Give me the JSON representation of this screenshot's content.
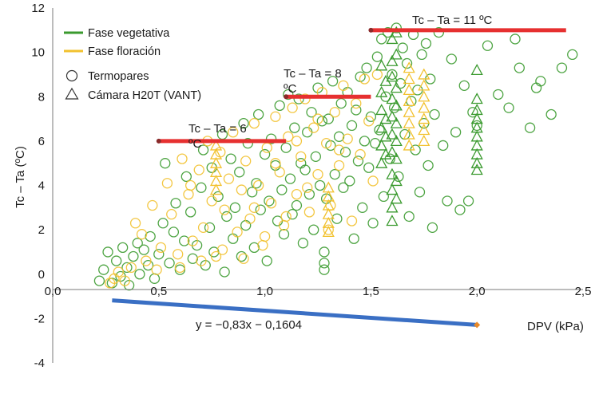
{
  "chart_data": {
    "type": "scatter",
    "xlabel": "DPV (kPa)",
    "ylabel": "Tc – Ta (ºC)",
    "xlim": [
      0,
      2.5
    ],
    "ylim": [
      -4,
      12
    ],
    "x_ticks": [
      "0,0",
      "0,5",
      "1,0",
      "1,5",
      "2,0",
      "2,5"
    ],
    "y_ticks": [
      "-4",
      "-2",
      "0",
      "2",
      "4",
      "6",
      "8",
      "10",
      "12"
    ],
    "legend": {
      "vegetative": "Fase vegetativa",
      "flowering": "Fase floración",
      "thermocouples": "Termopares",
      "camera": "Cámara H20T (VANT)"
    },
    "colors": {
      "vegetative": "#3a9a2e",
      "flowering": "#f2c12e",
      "threshold": "#e63030",
      "regression": "#3a6fc4"
    },
    "thresholds": [
      {
        "label": "Tc – Ta = 6 ºC",
        "line1": "Tc – Ta = 6",
        "line2": "ºC",
        "y": 6,
        "x_start": 0.5,
        "x_end": 1.1
      },
      {
        "label": "Tc – Ta = 8 ºC",
        "line1": "Tc – Ta = 8",
        "line2": "ºC",
        "y": 8,
        "x_start": 1.1,
        "x_end": 1.5
      },
      {
        "label": "Tc – Ta = 11 ºC",
        "line1": "Tc – Ta = 11 ºC",
        "y": 11,
        "x_start": 1.5,
        "x_end": 2.42
      }
    ],
    "regression": {
      "equation": "y = −0,83x − 0,1604",
      "slope": -0.83,
      "intercept": -0.1604,
      "x_start": 0.28,
      "x_end": 2.0
    },
    "series": [
      {
        "name": "Fase vegetativa – Termopares",
        "marker": "circle",
        "points": [
          [
            0.22,
            -0.3
          ],
          [
            0.24,
            0.2
          ],
          [
            0.26,
            1.0
          ],
          [
            0.28,
            -0.4
          ],
          [
            0.3,
            0.6
          ],
          [
            0.32,
            -0.1
          ],
          [
            0.33,
            1.2
          ],
          [
            0.35,
            0.3
          ],
          [
            0.36,
            -0.5
          ],
          [
            0.38,
            0.8
          ],
          [
            0.4,
            1.4
          ],
          [
            0.41,
            0.0
          ],
          [
            0.43,
            1.1
          ],
          [
            0.45,
            0.4
          ],
          [
            0.46,
            1.7
          ],
          [
            0.48,
            -0.2
          ],
          [
            0.5,
            0.9
          ],
          [
            0.52,
            2.3
          ],
          [
            0.53,
            5.0
          ],
          [
            0.55,
            0.5
          ],
          [
            0.57,
            1.9
          ],
          [
            0.58,
            3.2
          ],
          [
            0.6,
            0.2
          ],
          [
            0.62,
            1.5
          ],
          [
            0.63,
            4.4
          ],
          [
            0.65,
            2.8
          ],
          [
            0.66,
            0.7
          ],
          [
            0.68,
            1.3
          ],
          [
            0.7,
            3.9
          ],
          [
            0.71,
            5.6
          ],
          [
            0.72,
            0.4
          ],
          [
            0.74,
            2.1
          ],
          [
            0.75,
            4.8
          ],
          [
            0.76,
            1.0
          ],
          [
            0.78,
            3.5
          ],
          [
            0.8,
            6.3
          ],
          [
            0.81,
            0.1
          ],
          [
            0.82,
            2.6
          ],
          [
            0.84,
            5.2
          ],
          [
            0.85,
            1.6
          ],
          [
            0.86,
            3.0
          ],
          [
            0.88,
            4.6
          ],
          [
            0.89,
            0.8
          ],
          [
            0.9,
            6.8
          ],
          [
            0.91,
            2.2
          ],
          [
            0.92,
            5.9
          ],
          [
            0.94,
            3.7
          ],
          [
            0.95,
            1.2
          ],
          [
            0.96,
            4.1
          ],
          [
            0.97,
            7.2
          ],
          [
            0.98,
            2.9
          ],
          [
            1.0,
            5.4
          ],
          [
            1.01,
            0.6
          ],
          [
            1.02,
            3.3
          ],
          [
            1.03,
            6.1
          ],
          [
            1.05,
            4.9
          ],
          [
            1.06,
            2.4
          ],
          [
            1.07,
            7.6
          ],
          [
            1.08,
            3.8
          ],
          [
            1.09,
            1.8
          ],
          [
            1.1,
            5.7
          ],
          [
            1.11,
            8.1
          ],
          [
            1.12,
            4.3
          ],
          [
            1.13,
            2.7
          ],
          [
            1.14,
            6.6
          ],
          [
            1.15,
            3.1
          ],
          [
            1.16,
            7.9
          ],
          [
            1.17,
            5.0
          ],
          [
            1.18,
            1.4
          ],
          [
            1.19,
            4.7
          ],
          [
            1.2,
            6.4
          ],
          [
            1.21,
            3.6
          ],
          [
            1.22,
            7.3
          ],
          [
            1.23,
            2.0
          ],
          [
            1.24,
            5.3
          ],
          [
            1.25,
            8.4
          ],
          [
            1.26,
            4.0
          ],
          [
            1.27,
            6.9
          ],
          [
            1.28,
            0.5
          ],
          [
            1.28,
            1.0
          ],
          [
            1.28,
            0.2
          ],
          [
            1.29,
            3.4
          ],
          [
            1.3,
            7.0
          ],
          [
            1.31,
            5.8
          ],
          [
            1.32,
            8.7
          ],
          [
            1.33,
            4.5
          ],
          [
            1.34,
            2.5
          ],
          [
            1.35,
            6.2
          ],
          [
            1.36,
            7.7
          ],
          [
            1.37,
            3.9
          ],
          [
            1.38,
            5.5
          ],
          [
            1.39,
            8.2
          ],
          [
            1.4,
            4.2
          ],
          [
            1.41,
            6.7
          ],
          [
            1.42,
            1.6
          ],
          [
            1.43,
            7.4
          ],
          [
            1.44,
            5.1
          ],
          [
            1.45,
            8.9
          ],
          [
            1.46,
            3.0
          ],
          [
            1.47,
            6.0
          ],
          [
            1.48,
            9.3
          ],
          [
            1.49,
            4.8
          ],
          [
            1.5,
            7.1
          ],
          [
            1.51,
            2.3
          ],
          [
            1.52,
            5.9
          ],
          [
            1.53,
            9.8
          ],
          [
            1.54,
            6.5
          ],
          [
            1.55,
            10.6
          ],
          [
            1.56,
            3.5
          ],
          [
            1.57,
            8.0
          ],
          [
            1.58,
            10.9
          ],
          [
            1.59,
            5.2
          ],
          [
            1.6,
            9.0
          ],
          [
            1.61,
            7.5
          ],
          [
            1.62,
            11.1
          ],
          [
            1.63,
            4.4
          ],
          [
            1.64,
            8.6
          ],
          [
            1.65,
            10.2
          ],
          [
            1.66,
            6.3
          ],
          [
            1.67,
            9.5
          ],
          [
            1.68,
            2.6
          ],
          [
            1.69,
            7.8
          ],
          [
            1.7,
            10.8
          ],
          [
            1.71,
            5.6
          ],
          [
            1.72,
            8.3
          ],
          [
            1.73,
            3.7
          ],
          [
            1.74,
            9.9
          ],
          [
            1.75,
            6.8
          ],
          [
            1.76,
            10.4
          ],
          [
            1.77,
            4.9
          ],
          [
            1.78,
            8.8
          ],
          [
            1.79,
            2.1
          ],
          [
            1.8,
            7.2
          ],
          [
            1.82,
            10.9
          ],
          [
            1.84,
            5.8
          ],
          [
            1.86,
            3.3
          ],
          [
            1.88,
            9.7
          ],
          [
            1.9,
            6.4
          ],
          [
            1.92,
            2.9
          ],
          [
            1.94,
            8.5
          ],
          [
            1.96,
            3.3
          ],
          [
            1.98,
            7.3
          ],
          [
            2.0,
            6.7
          ],
          [
            2.05,
            10.3
          ],
          [
            2.1,
            8.1
          ],
          [
            2.15,
            7.5
          ],
          [
            2.2,
            9.3
          ],
          [
            2.25,
            6.6
          ],
          [
            2.3,
            8.7
          ],
          [
            2.35,
            7.2
          ],
          [
            2.4,
            9.3
          ],
          [
            2.45,
            9.9
          ],
          [
            2.18,
            10.6
          ],
          [
            2.28,
            8.4
          ]
        ]
      },
      {
        "name": "Fase floración – Termopares",
        "marker": "circle",
        "points": [
          [
            0.27,
            -0.4
          ],
          [
            0.29,
            -0.2
          ],
          [
            0.31,
            0.1
          ],
          [
            0.34,
            -0.3
          ],
          [
            0.37,
            0.3
          ],
          [
            0.39,
            2.3
          ],
          [
            0.42,
            1.8
          ],
          [
            0.44,
            0.6
          ],
          [
            0.47,
            3.1
          ],
          [
            0.49,
            0.2
          ],
          [
            0.51,
            1.2
          ],
          [
            0.54,
            4.1
          ],
          [
            0.56,
            2.7
          ],
          [
            0.59,
            0.9
          ],
          [
            0.61,
            5.2
          ],
          [
            0.64,
            3.6
          ],
          [
            0.66,
            1.5
          ],
          [
            0.69,
            4.7
          ],
          [
            0.71,
            2.1
          ],
          [
            0.73,
            6.0
          ],
          [
            0.75,
            3.3
          ],
          [
            0.77,
            0.8
          ],
          [
            0.79,
            5.5
          ],
          [
            0.81,
            2.9
          ],
          [
            0.83,
            4.3
          ],
          [
            0.85,
            6.4
          ],
          [
            0.87,
            1.9
          ],
          [
            0.89,
            3.8
          ],
          [
            0.91,
            5.1
          ],
          [
            0.93,
            2.5
          ],
          [
            0.95,
            6.8
          ],
          [
            0.97,
            4.0
          ],
          [
            0.99,
            1.3
          ],
          [
            1.01,
            5.7
          ],
          [
            1.03,
            3.2
          ],
          [
            1.05,
            7.1
          ],
          [
            1.07,
            4.6
          ],
          [
            1.09,
            2.2
          ],
          [
            1.11,
            6.2
          ],
          [
            1.13,
            7.5
          ],
          [
            1.15,
            3.6
          ],
          [
            1.17,
            5.3
          ],
          [
            1.19,
            7.9
          ],
          [
            1.21,
            2.8
          ],
          [
            1.23,
            6.6
          ],
          [
            1.25,
            4.5
          ],
          [
            1.27,
            8.2
          ],
          [
            1.29,
            5.9
          ],
          [
            1.31,
            3.1
          ],
          [
            1.33,
            7.3
          ],
          [
            1.35,
            4.9
          ],
          [
            1.37,
            8.5
          ],
          [
            1.39,
            6.1
          ],
          [
            1.41,
            2.4
          ],
          [
            1.43,
            7.7
          ],
          [
            1.45,
            5.4
          ],
          [
            1.47,
            8.8
          ],
          [
            1.49,
            6.9
          ],
          [
            1.51,
            4.2
          ],
          [
            1.53,
            9.0
          ],
          [
            0.6,
            0.3
          ],
          [
            0.7,
            0.6
          ],
          [
            0.8,
            1.1
          ],
          [
            0.9,
            0.7
          ],
          [
            1.0,
            1.7
          ],
          [
            1.1,
            2.6
          ],
          [
            1.2,
            3.9
          ],
          [
            1.3,
            2.0
          ],
          [
            0.65,
            4.0
          ],
          [
            0.95,
            3.0
          ],
          [
            1.05,
            5.0
          ],
          [
            1.15,
            6.0
          ],
          [
            1.25,
            7.0
          ],
          [
            1.35,
            5.6
          ]
        ]
      },
      {
        "name": "Fase vegetativa – Cámara H20T",
        "marker": "triangle",
        "points": [
          [
            1.6,
            10.6
          ],
          [
            1.6,
            9.6
          ],
          [
            1.6,
            8.9
          ],
          [
            1.6,
            7.9
          ],
          [
            1.6,
            7.1
          ],
          [
            1.6,
            6.3
          ],
          [
            1.6,
            5.5
          ],
          [
            1.6,
            4.5
          ],
          [
            1.6,
            3.8
          ],
          [
            1.6,
            3.0
          ],
          [
            1.6,
            2.4
          ],
          [
            1.62,
            10.9
          ],
          [
            1.62,
            9.9
          ],
          [
            1.62,
            8.4
          ],
          [
            1.62,
            7.6
          ],
          [
            1.62,
            6.8
          ],
          [
            1.62,
            6.0
          ],
          [
            1.62,
            5.2
          ],
          [
            1.62,
            4.2
          ],
          [
            1.62,
            3.4
          ],
          [
            1.55,
            9.4
          ],
          [
            1.55,
            8.2
          ],
          [
            1.55,
            7.4
          ],
          [
            1.55,
            6.6
          ],
          [
            1.55,
            5.8
          ],
          [
            1.55,
            5.0
          ],
          [
            1.57,
            8.7
          ],
          [
            1.57,
            7.0
          ],
          [
            1.57,
            6.2
          ],
          [
            1.57,
            5.4
          ],
          [
            2.0,
            9.2
          ],
          [
            2.0,
            7.9
          ],
          [
            2.0,
            7.4
          ],
          [
            2.0,
            7.0
          ],
          [
            2.0,
            6.6
          ],
          [
            2.0,
            6.2
          ],
          [
            2.0,
            5.8
          ],
          [
            2.0,
            5.4
          ],
          [
            2.0,
            5.0
          ],
          [
            2.0,
            4.7
          ]
        ]
      },
      {
        "name": "Fase floración – Cámara H20T",
        "marker": "triangle",
        "points": [
          [
            0.77,
            5.8
          ],
          [
            0.77,
            5.4
          ],
          [
            0.77,
            5.0
          ],
          [
            0.77,
            4.6
          ],
          [
            0.77,
            4.2
          ],
          [
            0.77,
            3.8
          ],
          [
            1.3,
            3.9
          ],
          [
            1.3,
            3.5
          ],
          [
            1.3,
            3.1
          ],
          [
            1.3,
            2.7
          ],
          [
            1.3,
            2.3
          ],
          [
            1.3,
            1.9
          ],
          [
            1.68,
            9.3
          ],
          [
            1.68,
            8.8
          ],
          [
            1.68,
            8.3
          ],
          [
            1.68,
            7.8
          ],
          [
            1.68,
            7.3
          ],
          [
            1.68,
            6.8
          ],
          [
            1.68,
            6.3
          ],
          [
            1.68,
            5.8
          ],
          [
            1.75,
            9.0
          ],
          [
            1.75,
            8.5
          ],
          [
            1.75,
            8.0
          ],
          [
            1.75,
            7.5
          ],
          [
            1.75,
            7.0
          ],
          [
            1.75,
            6.5
          ],
          [
            1.75,
            6.0
          ]
        ]
      }
    ]
  }
}
